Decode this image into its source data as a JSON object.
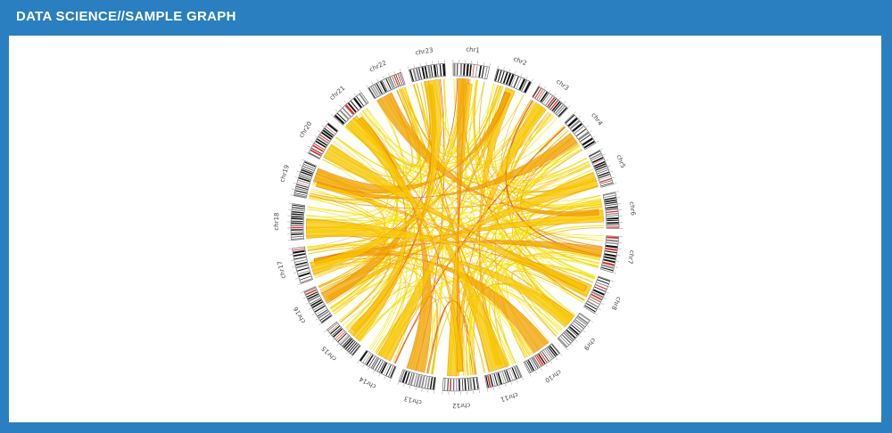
{
  "header": {
    "title": "DATA SCIENCE//SAMPLE GRAPH"
  },
  "circos": {
    "chromosomes": [
      "chr1",
      "chr2",
      "chr3",
      "chr4",
      "chr5",
      "chr6",
      "chr7",
      "chr8",
      "chr9",
      "chr10",
      "chr11",
      "chr12",
      "chr13",
      "chr14",
      "chr15",
      "chr16",
      "chr17",
      "chr18",
      "chr19",
      "chr20",
      "chr21",
      "chr22",
      "chr23"
    ],
    "colors": {
      "link_light": "#f5e200",
      "link_mid": "#f7c600",
      "link_dark": "#f0a000",
      "link_accent": "#d9352a",
      "band_dark": "#111111",
      "band_mid": "#888888",
      "band_red": "#d9352a",
      "band_bg": "#ffffff"
    }
  }
}
